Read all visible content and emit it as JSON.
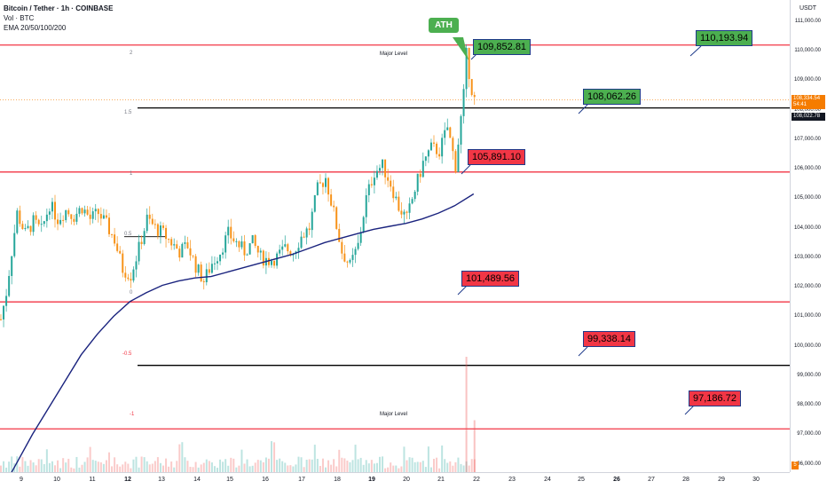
{
  "header": {
    "symbol": "Bitcoin / Tether · 1h · COINBASE",
    "volume": "Vol · BTC",
    "ema": "EMA 20/50/100/200"
  },
  "price_scale": {
    "currency": "USDT",
    "ticks": [
      "111,000.00",
      "110,000.00",
      "109,000.00",
      "108,000.00",
      "107,000.00",
      "106,000.00",
      "105,000.00",
      "104,000.00",
      "103,000.00",
      "102,000.00",
      "101,000.00",
      "100,000.00",
      "99,000.00",
      "98,000.00",
      "97,000.00",
      "96,000.00"
    ],
    "current_price": "108,334.54",
    "current_countdown": "54:41",
    "marked_price": "108,022.78",
    "corner_badge": "5"
  },
  "time_scale": {
    "ticks": [
      {
        "label": "9",
        "bold": false
      },
      {
        "label": "10",
        "bold": false
      },
      {
        "label": "11",
        "bold": false
      },
      {
        "label": "12",
        "bold": true
      },
      {
        "label": "13",
        "bold": false
      },
      {
        "label": "14",
        "bold": false
      },
      {
        "label": "15",
        "bold": false
      },
      {
        "label": "16",
        "bold": false
      },
      {
        "label": "17",
        "bold": false
      },
      {
        "label": "18",
        "bold": false
      },
      {
        "label": "19",
        "bold": true
      },
      {
        "label": "20",
        "bold": false
      },
      {
        "label": "21",
        "bold": false
      },
      {
        "label": "22",
        "bold": false
      },
      {
        "label": "23",
        "bold": false
      },
      {
        "label": "24",
        "bold": false
      },
      {
        "label": "25",
        "bold": false
      },
      {
        "label": "26",
        "bold": true
      },
      {
        "label": "27",
        "bold": false
      },
      {
        "label": "28",
        "bold": false
      },
      {
        "label": "29",
        "bold": false
      },
      {
        "label": "30",
        "bold": false
      }
    ]
  },
  "levels": {
    "major_top_label": "Major Level",
    "major_bottom_label": "Major Level",
    "fib": [
      "2",
      "1.5",
      "1",
      "0.5",
      "0",
      "-0.5",
      "-1"
    ],
    "colors": {
      "major": "#f23645",
      "fib_black": "#000000",
      "fib_label": "#787b86",
      "fib_neg": "#f23645"
    }
  },
  "annotations": {
    "ath": "ATH",
    "callouts": [
      {
        "id": "c1",
        "text": "109,852.81",
        "color": "green"
      },
      {
        "id": "c2",
        "text": "110,193.94",
        "color": "green"
      },
      {
        "id": "c3",
        "text": "108,062.26",
        "color": "green"
      },
      {
        "id": "c4",
        "text": "105,891.10",
        "color": "red"
      },
      {
        "id": "c5",
        "text": "101,489.56",
        "color": "red"
      },
      {
        "id": "c6",
        "text": "99,338.14",
        "color": "red"
      },
      {
        "id": "c7",
        "text": "97,186.72",
        "color": "red"
      }
    ]
  },
  "chart_data": {
    "type": "candlestick",
    "symbol": "BTC/USDT",
    "timeframe": "1h",
    "x_range": [
      "2025-06-08 12:00",
      "2025-06-22 03:00"
    ],
    "ylim": [
      95600,
      111600
    ],
    "price_path": [
      [
        0,
        100900
      ],
      [
        2,
        101800
      ],
      [
        4,
        103200
      ],
      [
        6,
        104500
      ],
      [
        9,
        103800
      ],
      [
        12,
        104200
      ],
      [
        15,
        103900
      ],
      [
        18,
        104800
      ],
      [
        21,
        104300
      ],
      [
        24,
        104600
      ],
      [
        27,
        104400
      ],
      [
        30,
        104700
      ],
      [
        33,
        104300
      ],
      [
        36,
        104500
      ],
      [
        39,
        104100
      ],
      [
        42,
        103600
      ],
      [
        45,
        102600
      ],
      [
        48,
        102400
      ],
      [
        51,
        103300
      ],
      [
        54,
        104300
      ],
      [
        57,
        104000
      ],
      [
        60,
        103800
      ],
      [
        63,
        103500
      ],
      [
        66,
        103200
      ],
      [
        69,
        103400
      ],
      [
        72,
        102700
      ],
      [
        75,
        102200
      ],
      [
        78,
        102800
      ],
      [
        81,
        103200
      ],
      [
        84,
        103800
      ],
      [
        87,
        103500
      ],
      [
        90,
        103200
      ],
      [
        93,
        103500
      ],
      [
        96,
        103000
      ],
      [
        99,
        102900
      ],
      [
        102,
        103000
      ],
      [
        105,
        103300
      ],
      [
        108,
        103200
      ],
      [
        111,
        103700
      ],
      [
        114,
        104000
      ],
      [
        117,
        105300
      ],
      [
        120,
        105700
      ],
      [
        123,
        104500
      ],
      [
        126,
        103200
      ],
      [
        129,
        102700
      ],
      [
        132,
        103400
      ],
      [
        135,
        105000
      ],
      [
        138,
        105900
      ],
      [
        141,
        106100
      ],
      [
        144,
        105500
      ],
      [
        147,
        104700
      ],
      [
        150,
        104300
      ],
      [
        153,
        105300
      ],
      [
        156,
        106200
      ],
      [
        159,
        106700
      ],
      [
        162,
        106600
      ],
      [
        165,
        107400
      ],
      [
        168,
        106100
      ],
      [
        171,
        108500
      ],
      [
        172,
        109852
      ],
      [
        174,
        108700
      ],
      [
        175,
        108335
      ]
    ],
    "ema200": [
      [
        0,
        95000
      ],
      [
        6,
        96000
      ],
      [
        12,
        97000
      ],
      [
        18,
        97900
      ],
      [
        24,
        98800
      ],
      [
        30,
        99700
      ],
      [
        36,
        100400
      ],
      [
        42,
        101000
      ],
      [
        48,
        101500
      ],
      [
        54,
        101800
      ],
      [
        60,
        102050
      ],
      [
        66,
        102200
      ],
      [
        72,
        102300
      ],
      [
        78,
        102350
      ],
      [
        84,
        102500
      ],
      [
        90,
        102650
      ],
      [
        96,
        102800
      ],
      [
        102,
        102950
      ],
      [
        108,
        103100
      ],
      [
        114,
        103300
      ],
      [
        120,
        103500
      ],
      [
        126,
        103650
      ],
      [
        132,
        103800
      ],
      [
        138,
        103950
      ],
      [
        144,
        104050
      ],
      [
        150,
        104150
      ],
      [
        156,
        104300
      ],
      [
        162,
        104500
      ],
      [
        168,
        104750
      ],
      [
        175,
        105150
      ]
    ],
    "volume_spikes": [
      [
        172,
        1.0
      ],
      [
        175,
        0.45
      ]
    ],
    "horizontal_levels": [
      110193.94,
      108062.26,
      105891.1,
      101489.56,
      99338.14,
      97186.72
    ],
    "fib_levels": [
      {
        "label": "2",
        "price": 110193.94
      },
      {
        "label": "1.5",
        "price": 108062.26
      },
      {
        "label": "1",
        "price": 105891.1
      },
      {
        "label": "0.5",
        "price": 103700
      },
      {
        "label": "0",
        "price": 101489.56
      },
      {
        "label": "-0.5",
        "price": 99338.14
      },
      {
        "label": "-1",
        "price": 97186.72
      }
    ],
    "ath_price": 109852.81,
    "current_price": 108334.54
  }
}
